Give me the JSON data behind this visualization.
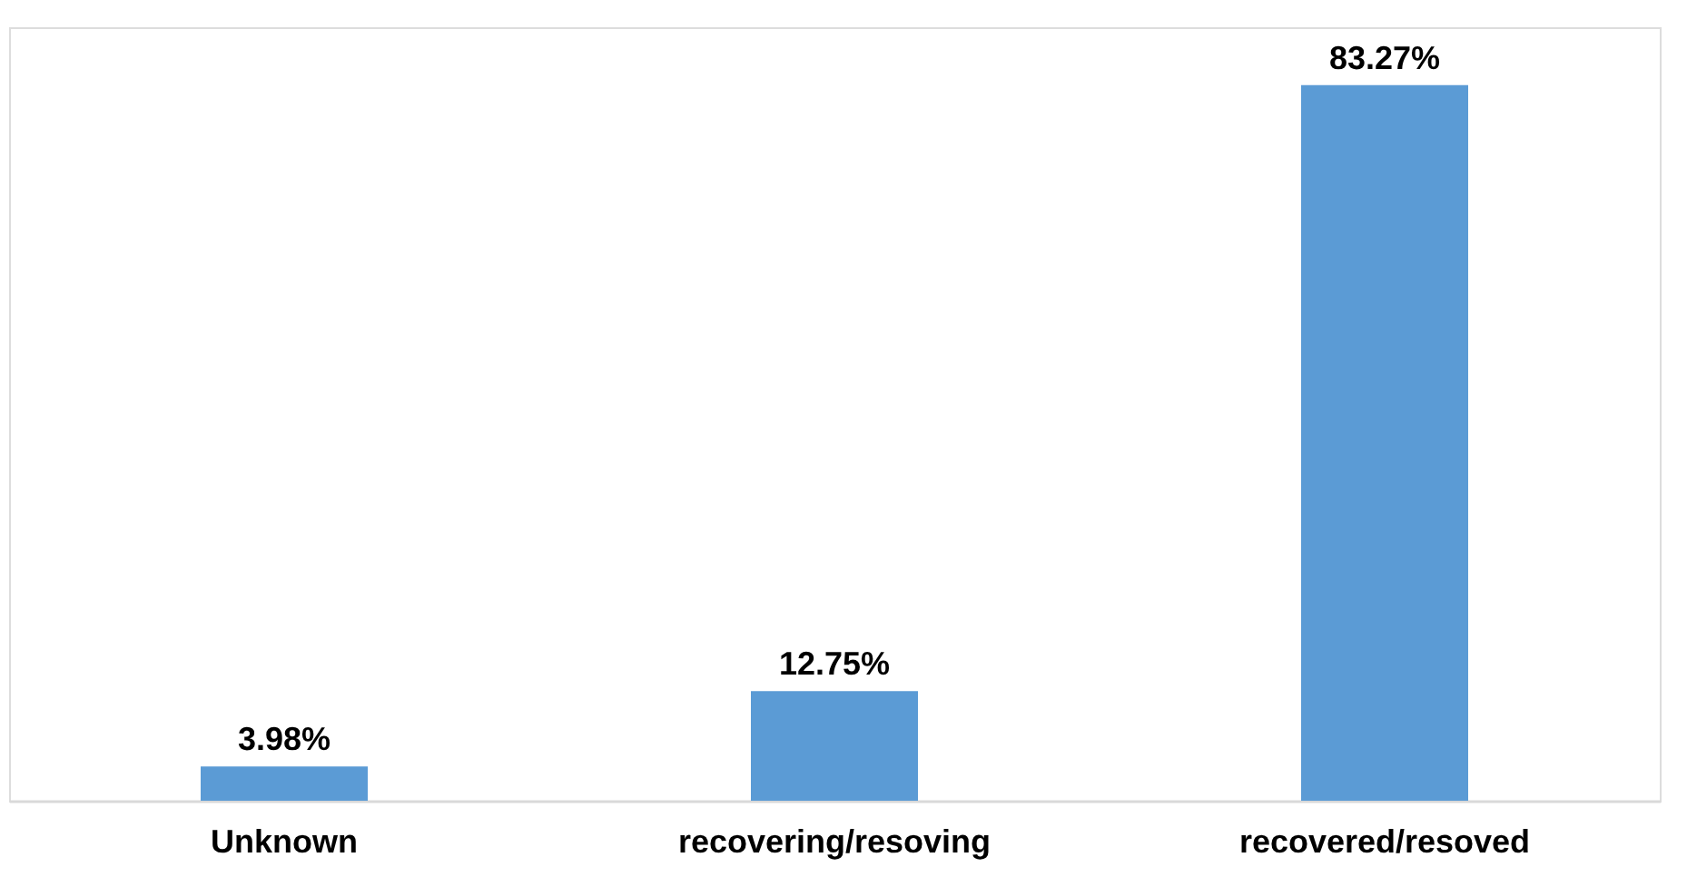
{
  "chart_data": {
    "type": "bar",
    "categories": [
      "Unknown",
      "recovering/resoving",
      "recovered/resoved"
    ],
    "values": [
      3.98,
      12.75,
      83.27
    ],
    "color": "#5b9bd5",
    "value_labels": [
      "3.98%",
      "12.75%",
      "83.27%"
    ]
  }
}
